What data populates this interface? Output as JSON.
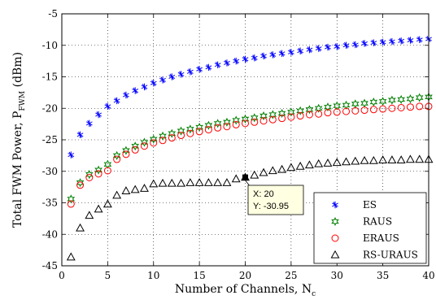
{
  "chart_data": {
    "type": "scatter",
    "xlabel": "Number of Channels, N",
    "xlabel_sub": "c",
    "ylabel": "Total FWM Power, P",
    "ylabel_sub": "FWM",
    "ylabel_unit": " (dBm)",
    "xlim": [
      0,
      40
    ],
    "ylim": [
      -45,
      -5
    ],
    "xticks": [
      0,
      5,
      10,
      15,
      20,
      25,
      30,
      35,
      40
    ],
    "yticks": [
      -5,
      -10,
      -15,
      -20,
      -25,
      -30,
      -35,
      -40,
      -45
    ],
    "grid": "dotted",
    "legend_position": "bottom-right",
    "series": [
      {
        "name": "ES",
        "marker": "asterisk",
        "color": "#0000ff",
        "x": [
          1,
          2,
          3,
          4,
          5,
          6,
          7,
          8,
          9,
          10,
          11,
          12,
          13,
          14,
          15,
          16,
          17,
          18,
          19,
          20,
          21,
          22,
          23,
          24,
          25,
          26,
          27,
          28,
          29,
          30,
          31,
          32,
          33,
          34,
          35,
          36,
          37,
          38,
          39,
          40
        ],
        "y": [
          -27.4,
          -24.2,
          -22.4,
          -21.0,
          -19.7,
          -18.8,
          -17.9,
          -17.2,
          -16.6,
          -16.0,
          -15.5,
          -15.0,
          -14.6,
          -14.2,
          -13.8,
          -13.5,
          -13.1,
          -12.8,
          -12.5,
          -12.2,
          -12.0,
          -11.7,
          -11.5,
          -11.3,
          -11.1,
          -10.9,
          -10.7,
          -10.5,
          -10.3,
          -10.2,
          -10.0,
          -9.9,
          -9.7,
          -9.6,
          -9.5,
          -9.4,
          -9.3,
          -9.2,
          -9.1,
          -9.0
        ]
      },
      {
        "name": "RAUS",
        "marker": "hexagram",
        "color": "#008000",
        "x": [
          1,
          2,
          3,
          4,
          5,
          6,
          7,
          8,
          9,
          10,
          11,
          12,
          13,
          14,
          15,
          16,
          17,
          18,
          19,
          20,
          21,
          22,
          23,
          24,
          25,
          26,
          27,
          28,
          29,
          30,
          31,
          32,
          33,
          34,
          35,
          36,
          37,
          38,
          39,
          40
        ],
        "y": [
          -34.4,
          -31.8,
          -30.5,
          -29.8,
          -28.9,
          -27.5,
          -26.7,
          -26.0,
          -25.4,
          -24.9,
          -24.4,
          -24.0,
          -23.6,
          -23.3,
          -23.0,
          -22.7,
          -22.4,
          -22.2,
          -21.9,
          -21.7,
          -21.5,
          -21.2,
          -21.0,
          -20.8,
          -20.6,
          -20.4,
          -20.2,
          -20.0,
          -19.8,
          -19.6,
          -19.5,
          -19.3,
          -19.2,
          -19.0,
          -18.9,
          -18.7,
          -18.6,
          -18.5,
          -18.3,
          -18.2
        ]
      },
      {
        "name": "ERAUS",
        "marker": "circle",
        "color": "#ff0000",
        "x": [
          1,
          2,
          3,
          4,
          5,
          6,
          7,
          8,
          9,
          10,
          11,
          12,
          13,
          14,
          15,
          16,
          17,
          18,
          19,
          20,
          21,
          22,
          23,
          24,
          25,
          26,
          27,
          28,
          29,
          30,
          31,
          32,
          33,
          34,
          35,
          36,
          37,
          38,
          39,
          40
        ],
        "y": [
          -35.2,
          -32.2,
          -31.0,
          -30.4,
          -29.9,
          -28.1,
          -27.3,
          -26.6,
          -26.0,
          -25.5,
          -25.1,
          -24.7,
          -24.3,
          -24.0,
          -23.7,
          -23.4,
          -23.1,
          -22.9,
          -22.6,
          -22.4,
          -22.2,
          -22.0,
          -21.8,
          -21.6,
          -21.4,
          -21.2,
          -21.0,
          -20.9,
          -20.7,
          -20.6,
          -20.5,
          -20.4,
          -20.3,
          -20.2,
          -20.1,
          -20.0,
          -19.9,
          -19.8,
          -19.7,
          -19.7
        ]
      },
      {
        "name": "RS-URAUS",
        "marker": "triangle",
        "color": "#000000",
        "x": [
          1,
          2,
          3,
          4,
          5,
          6,
          7,
          8,
          9,
          10,
          11,
          12,
          13,
          14,
          15,
          16,
          17,
          18,
          19,
          20,
          21,
          22,
          23,
          24,
          25,
          26,
          27,
          28,
          29,
          30,
          31,
          32,
          33,
          34,
          35,
          36,
          37,
          38,
          39,
          40
        ],
        "y": [
          -43.6,
          -39.0,
          -37.0,
          -36.0,
          -35.2,
          -33.8,
          -33.1,
          -32.9,
          -32.7,
          -32.0,
          -31.9,
          -31.9,
          -31.9,
          -31.8,
          -31.8,
          -31.8,
          -31.8,
          -31.8,
          -31.2,
          -30.95,
          -30.6,
          -30.2,
          -29.9,
          -29.7,
          -29.4,
          -29.2,
          -29.0,
          -28.8,
          -28.7,
          -28.6,
          -28.5,
          -28.4,
          -28.3,
          -28.3,
          -28.2,
          -28.2,
          -28.2,
          -28.1,
          -28.1,
          -28.1
        ]
      }
    ],
    "datatip": {
      "x": 20,
      "y": -30.95,
      "x_text": "X: 20",
      "y_text": "Y: -30.95"
    }
  }
}
